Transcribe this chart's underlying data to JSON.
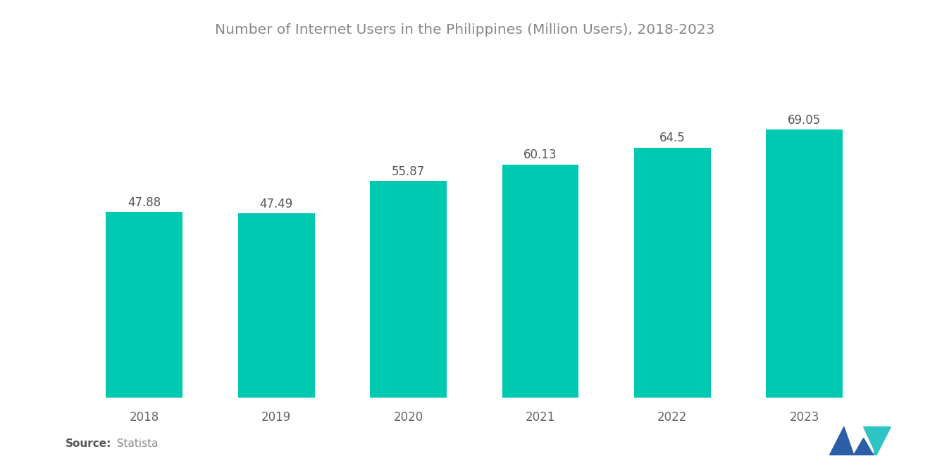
{
  "title": "Number of Internet Users in the Philippines (Million Users), 2018-2023",
  "years": [
    "2018",
    "2019",
    "2020",
    "2021",
    "2022",
    "2023"
  ],
  "values": [
    47.88,
    47.49,
    55.87,
    60.13,
    64.5,
    69.05
  ],
  "value_labels": [
    "47.88",
    "47.49",
    "55.87",
    "60.13",
    "64.5",
    "69.05"
  ],
  "bar_color": "#00C9B1",
  "background_color": "#ffffff",
  "title_fontsize": 14.5,
  "label_fontsize": 12,
  "tick_fontsize": 12,
  "source_bold": "Source:",
  "source_normal": "  Statista",
  "ylim": [
    0,
    82
  ],
  "bar_width": 0.58,
  "title_color": "#888888",
  "tick_color": "#666666",
  "value_color": "#555555"
}
